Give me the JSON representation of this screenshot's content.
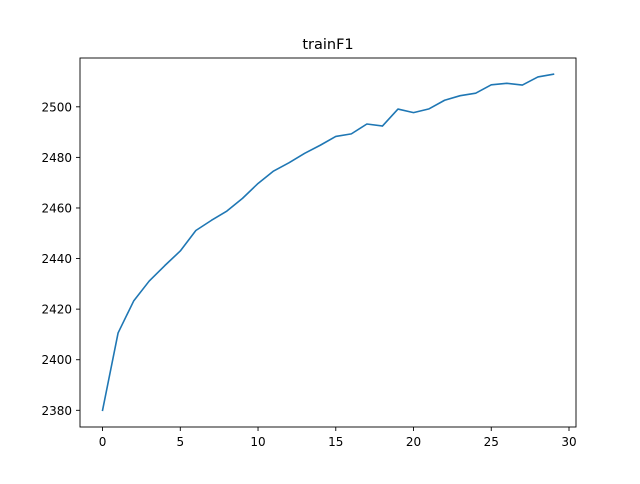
{
  "chart_data": {
    "type": "line",
    "title": "trainF1",
    "xlabel": "",
    "ylabel": "",
    "xlim": [
      -1.45,
      30.45
    ],
    "ylim": [
      2373.4,
      2519.3
    ],
    "x_ticks": [
      0,
      5,
      10,
      15,
      20,
      25,
      30
    ],
    "y_ticks": [
      2380,
      2400,
      2420,
      2440,
      2460,
      2480,
      2500
    ],
    "grid": false,
    "legend": "none",
    "series": [
      {
        "color": "#1f77b4",
        "x": [
          0,
          1,
          2,
          3,
          4,
          5,
          6,
          7,
          8,
          9,
          10,
          11,
          12,
          13,
          14,
          15,
          16,
          17,
          18,
          19,
          20,
          21,
          22,
          23,
          24,
          25,
          26,
          27,
          28,
          29
        ],
        "y": [
          2380.0,
          2410.6,
          2423.2,
          2431.1,
          2437.2,
          2443.0,
          2451.1,
          2455.1,
          2458.8,
          2463.8,
          2469.7,
          2474.6,
          2477.9,
          2481.6,
          2484.8,
          2488.3,
          2489.3,
          2493.2,
          2492.4,
          2499.1,
          2497.7,
          2499.2,
          2502.6,
          2504.4,
          2505.4,
          2508.7,
          2509.3,
          2508.6,
          2511.8,
          2512.9
        ]
      }
    ]
  }
}
